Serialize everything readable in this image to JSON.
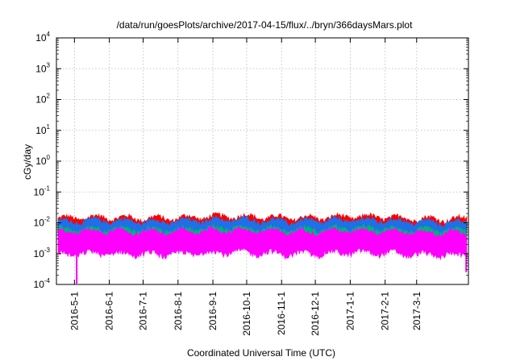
{
  "chart_data": {
    "type": "area",
    "title": "/data/run/goesPlots/archive/2017-04-15/flux/../bryn/366daysMars.plot",
    "xlabel": "Coordinated Universal Time (UTC)",
    "ylabel": "cGy/day",
    "yscale": "log",
    "ylim": [
      0.0001,
      10000
    ],
    "xlim": [
      "2016-04-15",
      "2017-04-16"
    ],
    "grid": true,
    "y_ticks": [
      {
        "base": "10",
        "exp": "-4",
        "value": 0.0001
      },
      {
        "base": "10",
        "exp": "-3",
        "value": 0.001
      },
      {
        "base": "10",
        "exp": "-2",
        "value": 0.01
      },
      {
        "base": "10",
        "exp": "-1",
        "value": 0.1
      },
      {
        "base": "10",
        "exp": "0",
        "value": 1
      },
      {
        "base": "10",
        "exp": "1",
        "value": 10
      },
      {
        "base": "10",
        "exp": "2",
        "value": 100
      },
      {
        "base": "10",
        "exp": "3",
        "value": 1000
      },
      {
        "base": "10",
        "exp": "4",
        "value": 10000
      }
    ],
    "x_ticks": [
      {
        "label": "2016-5-1",
        "date": "2016-05-01"
      },
      {
        "label": "2016-6-1",
        "date": "2016-06-01"
      },
      {
        "label": "2016-7-1",
        "date": "2016-07-01"
      },
      {
        "label": "2016-8-1",
        "date": "2016-08-01"
      },
      {
        "label": "2016-9-1",
        "date": "2016-09-01"
      },
      {
        "label": "2016-10-1",
        "date": "2016-10-01"
      },
      {
        "label": "2016-11-1",
        "date": "2016-11-01"
      },
      {
        "label": "2016-12-1",
        "date": "2016-12-01"
      },
      {
        "label": "2017-1-1",
        "date": "2017-01-01"
      },
      {
        "label": "2017-2-1",
        "date": "2017-02-01"
      },
      {
        "label": "2017-3-1",
        "date": "2017-03-01"
      }
    ],
    "series": [
      {
        "color": "#ff0000",
        "typical_range": [
          0.006,
          0.014
        ]
      },
      {
        "color": "#1e6fe8",
        "typical_range": [
          0.004,
          0.011
        ]
      },
      {
        "color": "#00b37a",
        "typical_range": [
          0.003,
          0.006
        ]
      },
      {
        "color": "#ff00ff",
        "typical_range": [
          0.001,
          0.005
        ]
      }
    ],
    "dips": [
      {
        "date": "2016-05-03",
        "series_color": "#ff00ff",
        "value": 0.0001
      },
      {
        "date": "2017-04-14",
        "series_color": "#ff00ff",
        "value": 0.00025
      }
    ]
  }
}
